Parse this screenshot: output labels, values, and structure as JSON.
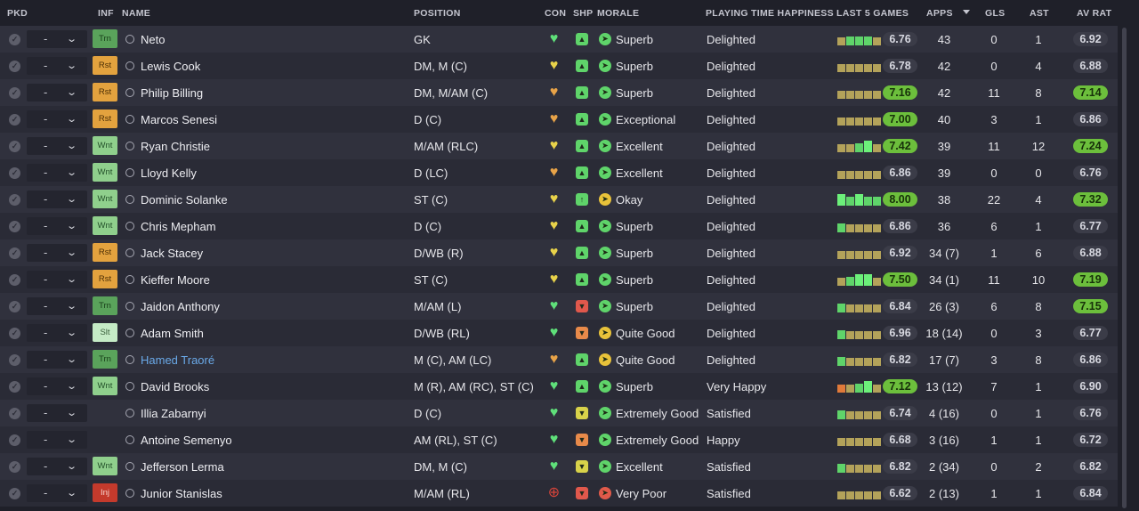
{
  "headers": {
    "pkd": "PKD",
    "inf": "INF",
    "name": "NAME",
    "position": "POSITION",
    "con": "CON",
    "shp": "SHP",
    "morale": "MORALE",
    "playing_time": "PLAYING TIME HAPPINESS",
    "last5": "LAST 5 GAMES",
    "apps": "APPS",
    "gls": "GLS",
    "ast": "AST",
    "av_rat": "AV RAT"
  },
  "colors": {
    "good_rating": "#6cbf3c",
    "trn": "#5aa35b",
    "rst": "#e3a23e",
    "wnt": "#8fcf8c",
    "slt": "#c5ebc6",
    "inj": "#c43a2c"
  },
  "rows": [
    {
      "pkd": "-",
      "inf": "Trn",
      "inf_class": "trn",
      "name": "Neto",
      "position": "GK",
      "con": "green",
      "shp": "green-up",
      "morale_icon": "green",
      "morale": "Superb",
      "playing_time": "Delighted",
      "last5_rating": "6.76",
      "last5_good": false,
      "last5_bars": [
        "o",
        "g",
        "g",
        "g",
        "o"
      ],
      "apps": "43",
      "gls": "0",
      "ast": "1",
      "av_rat": "6.92",
      "av_good": false
    },
    {
      "pkd": "-",
      "inf": "Rst",
      "inf_class": "rst",
      "name": "Lewis Cook",
      "position": "DM, M (C)",
      "con": "yellow",
      "shp": "green-up",
      "morale_icon": "green",
      "morale": "Superb",
      "playing_time": "Delighted",
      "last5_rating": "6.78",
      "last5_good": false,
      "last5_bars": [
        "o",
        "o",
        "o",
        "o",
        "o"
      ],
      "apps": "42",
      "gls": "0",
      "ast": "4",
      "av_rat": "6.88",
      "av_good": false
    },
    {
      "pkd": "-",
      "inf": "Rst",
      "inf_class": "rst",
      "name": "Philip Billing",
      "position": "DM, M/AM (C)",
      "con": "orange",
      "shp": "green-up",
      "morale_icon": "green",
      "morale": "Superb",
      "playing_time": "Delighted",
      "last5_rating": "7.16",
      "last5_good": true,
      "last5_bars": [
        "o",
        "o",
        "o",
        "o",
        "o"
      ],
      "apps": "42",
      "gls": "11",
      "ast": "8",
      "av_rat": "7.14",
      "av_good": true
    },
    {
      "pkd": "-",
      "inf": "Rst",
      "inf_class": "rst",
      "name": "Marcos Senesi",
      "position": "D (C)",
      "con": "orange",
      "shp": "green-up",
      "morale_icon": "green",
      "morale": "Exceptional",
      "playing_time": "Delighted",
      "last5_rating": "7.00",
      "last5_good": true,
      "last5_bars": [
        "o",
        "o",
        "o",
        "o",
        "o"
      ],
      "apps": "40",
      "gls": "3",
      "ast": "1",
      "av_rat": "6.86",
      "av_good": false
    },
    {
      "pkd": "-",
      "inf": "Wnt",
      "inf_class": "wnt",
      "name": "Ryan Christie",
      "position": "M/AM (RLC)",
      "con": "yellow",
      "shp": "green-up",
      "morale_icon": "green",
      "morale": "Excellent",
      "playing_time": "Delighted",
      "last5_rating": "7.42",
      "last5_good": true,
      "last5_bars": [
        "o",
        "o",
        "g",
        "G",
        "o"
      ],
      "apps": "39",
      "gls": "11",
      "ast": "12",
      "av_rat": "7.24",
      "av_good": true
    },
    {
      "pkd": "-",
      "inf": "Wnt",
      "inf_class": "wnt",
      "name": "Lloyd Kelly",
      "position": "D (LC)",
      "con": "orange",
      "shp": "green-up",
      "morale_icon": "green",
      "morale": "Excellent",
      "playing_time": "Delighted",
      "last5_rating": "6.86",
      "last5_good": false,
      "last5_bars": [
        "o",
        "o",
        "o",
        "o",
        "o"
      ],
      "apps": "39",
      "gls": "0",
      "ast": "0",
      "av_rat": "6.76",
      "av_good": false
    },
    {
      "pkd": "-",
      "inf": "Wnt",
      "inf_class": "wnt",
      "name": "Dominic Solanke",
      "position": "ST (C)",
      "con": "yellow",
      "shp": "green-dbl",
      "morale_icon": "yellow",
      "morale": "Okay",
      "playing_time": "Delighted",
      "last5_rating": "8.00",
      "last5_good": true,
      "last5_bars": [
        "G",
        "g",
        "G",
        "g",
        "g"
      ],
      "apps": "38",
      "gls": "22",
      "ast": "4",
      "av_rat": "7.32",
      "av_good": true
    },
    {
      "pkd": "-",
      "inf": "Wnt",
      "inf_class": "wnt",
      "name": "Chris Mepham",
      "position": "D (C)",
      "con": "yellow",
      "shp": "green-up",
      "morale_icon": "green",
      "morale": "Superb",
      "playing_time": "Delighted",
      "last5_rating": "6.86",
      "last5_good": false,
      "last5_bars": [
        "g",
        "o",
        "o",
        "o",
        "o"
      ],
      "apps": "36",
      "gls": "6",
      "ast": "1",
      "av_rat": "6.77",
      "av_good": false
    },
    {
      "pkd": "-",
      "inf": "Rst",
      "inf_class": "rst",
      "name": "Jack Stacey",
      "position": "D/WB (R)",
      "con": "yellow",
      "shp": "green-up",
      "morale_icon": "green",
      "morale": "Superb",
      "playing_time": "Delighted",
      "last5_rating": "6.92",
      "last5_good": false,
      "last5_bars": [
        "o",
        "o",
        "o",
        "o",
        "o"
      ],
      "apps": "34 (7)",
      "gls": "1",
      "ast": "6",
      "av_rat": "6.88",
      "av_good": false
    },
    {
      "pkd": "-",
      "inf": "Rst",
      "inf_class": "rst",
      "name": "Kieffer Moore",
      "position": "ST (C)",
      "con": "yellow",
      "shp": "green-up",
      "morale_icon": "green",
      "morale": "Superb",
      "playing_time": "Delighted",
      "last5_rating": "7.50",
      "last5_good": true,
      "last5_bars": [
        "o",
        "g",
        "G",
        "G",
        "o"
      ],
      "apps": "34 (1)",
      "gls": "11",
      "ast": "10",
      "av_rat": "7.19",
      "av_good": true
    },
    {
      "pkd": "-",
      "inf": "Trn",
      "inf_class": "trn",
      "name": "Jaidon Anthony",
      "position": "M/AM (L)",
      "con": "green",
      "shp": "red-down",
      "morale_icon": "green",
      "morale": "Superb",
      "playing_time": "Delighted",
      "last5_rating": "6.84",
      "last5_good": false,
      "last5_bars": [
        "g",
        "o",
        "o",
        "o",
        "o"
      ],
      "apps": "26 (3)",
      "gls": "6",
      "ast": "8",
      "av_rat": "7.15",
      "av_good": true
    },
    {
      "pkd": "-",
      "inf": "Slt",
      "inf_class": "slt",
      "name": "Adam Smith",
      "position": "D/WB (RL)",
      "con": "green",
      "shp": "orange-dn",
      "morale_icon": "yellow",
      "morale": "Quite Good",
      "playing_time": "Delighted",
      "last5_rating": "6.96",
      "last5_good": false,
      "last5_bars": [
        "g",
        "o",
        "o",
        "o",
        "o"
      ],
      "apps": "18 (14)",
      "gls": "0",
      "ast": "3",
      "av_rat": "6.77",
      "av_good": false
    },
    {
      "pkd": "-",
      "inf": "Trn",
      "inf_class": "trn",
      "name": "Hamed Traoré",
      "name_link": true,
      "position": "M (C), AM (LC)",
      "con": "orange",
      "shp": "green-up",
      "morale_icon": "yellow",
      "morale": "Quite Good",
      "playing_time": "Delighted",
      "last5_rating": "6.82",
      "last5_good": false,
      "last5_bars": [
        "g",
        "o",
        "o",
        "o",
        "o"
      ],
      "apps": "17 (7)",
      "gls": "3",
      "ast": "8",
      "av_rat": "6.86",
      "av_good": false
    },
    {
      "pkd": "-",
      "inf": "Wnt",
      "inf_class": "wnt",
      "name": "David Brooks",
      "position": "M (R), AM (RC), ST (C)",
      "con": "green",
      "shp": "green-up",
      "morale_icon": "green",
      "morale": "Superb",
      "playing_time": "Very Happy",
      "last5_rating": "7.12",
      "last5_good": true,
      "last5_bars": [
        "r",
        "o",
        "g",
        "G",
        "o"
      ],
      "apps": "13 (12)",
      "gls": "7",
      "ast": "1",
      "av_rat": "6.90",
      "av_good": false
    },
    {
      "pkd": "-",
      "inf": "",
      "inf_class": "",
      "name": "Illia Zabarnyi",
      "position": "D (C)",
      "con": "green",
      "shp": "yellow-dn",
      "morale_icon": "green",
      "morale": "Extremely Good",
      "playing_time": "Satisfied",
      "last5_rating": "6.74",
      "last5_good": false,
      "last5_bars": [
        "g",
        "o",
        "o",
        "o",
        "o"
      ],
      "apps": "4 (16)",
      "gls": "0",
      "ast": "1",
      "av_rat": "6.76",
      "av_good": false
    },
    {
      "pkd": "-",
      "inf": "",
      "inf_class": "",
      "name": "Antoine Semenyo",
      "position": "AM (RL), ST (C)",
      "con": "green",
      "shp": "orange-dn",
      "morale_icon": "green",
      "morale": "Extremely Good",
      "playing_time": "Happy",
      "last5_rating": "6.68",
      "last5_good": false,
      "last5_bars": [
        "o",
        "o",
        "o",
        "o",
        "o"
      ],
      "apps": "3 (16)",
      "gls": "1",
      "ast": "1",
      "av_rat": "6.72",
      "av_good": false
    },
    {
      "pkd": "-",
      "inf": "Wnt",
      "inf_class": "wnt",
      "name": "Jefferson Lerma",
      "position": "DM, M (C)",
      "con": "green",
      "shp": "yellow-dn",
      "morale_icon": "green",
      "morale": "Excellent",
      "playing_time": "Satisfied",
      "last5_rating": "6.82",
      "last5_good": false,
      "last5_bars": [
        "g",
        "o",
        "o",
        "o",
        "o"
      ],
      "apps": "2 (34)",
      "gls": "0",
      "ast": "2",
      "av_rat": "6.82",
      "av_good": false
    },
    {
      "pkd": "-",
      "inf": "Inj",
      "inf_class": "inj",
      "name": "Junior Stanislas",
      "position": "M/AM (RL)",
      "con": "red",
      "shp": "red-down",
      "morale_icon": "red",
      "morale": "Very Poor",
      "playing_time": "Satisfied",
      "last5_rating": "6.62",
      "last5_good": false,
      "last5_bars": [
        "o",
        "o",
        "o",
        "o",
        "o"
      ],
      "apps": "2 (13)",
      "gls": "1",
      "ast": "1",
      "av_rat": "6.84",
      "av_good": false
    }
  ]
}
